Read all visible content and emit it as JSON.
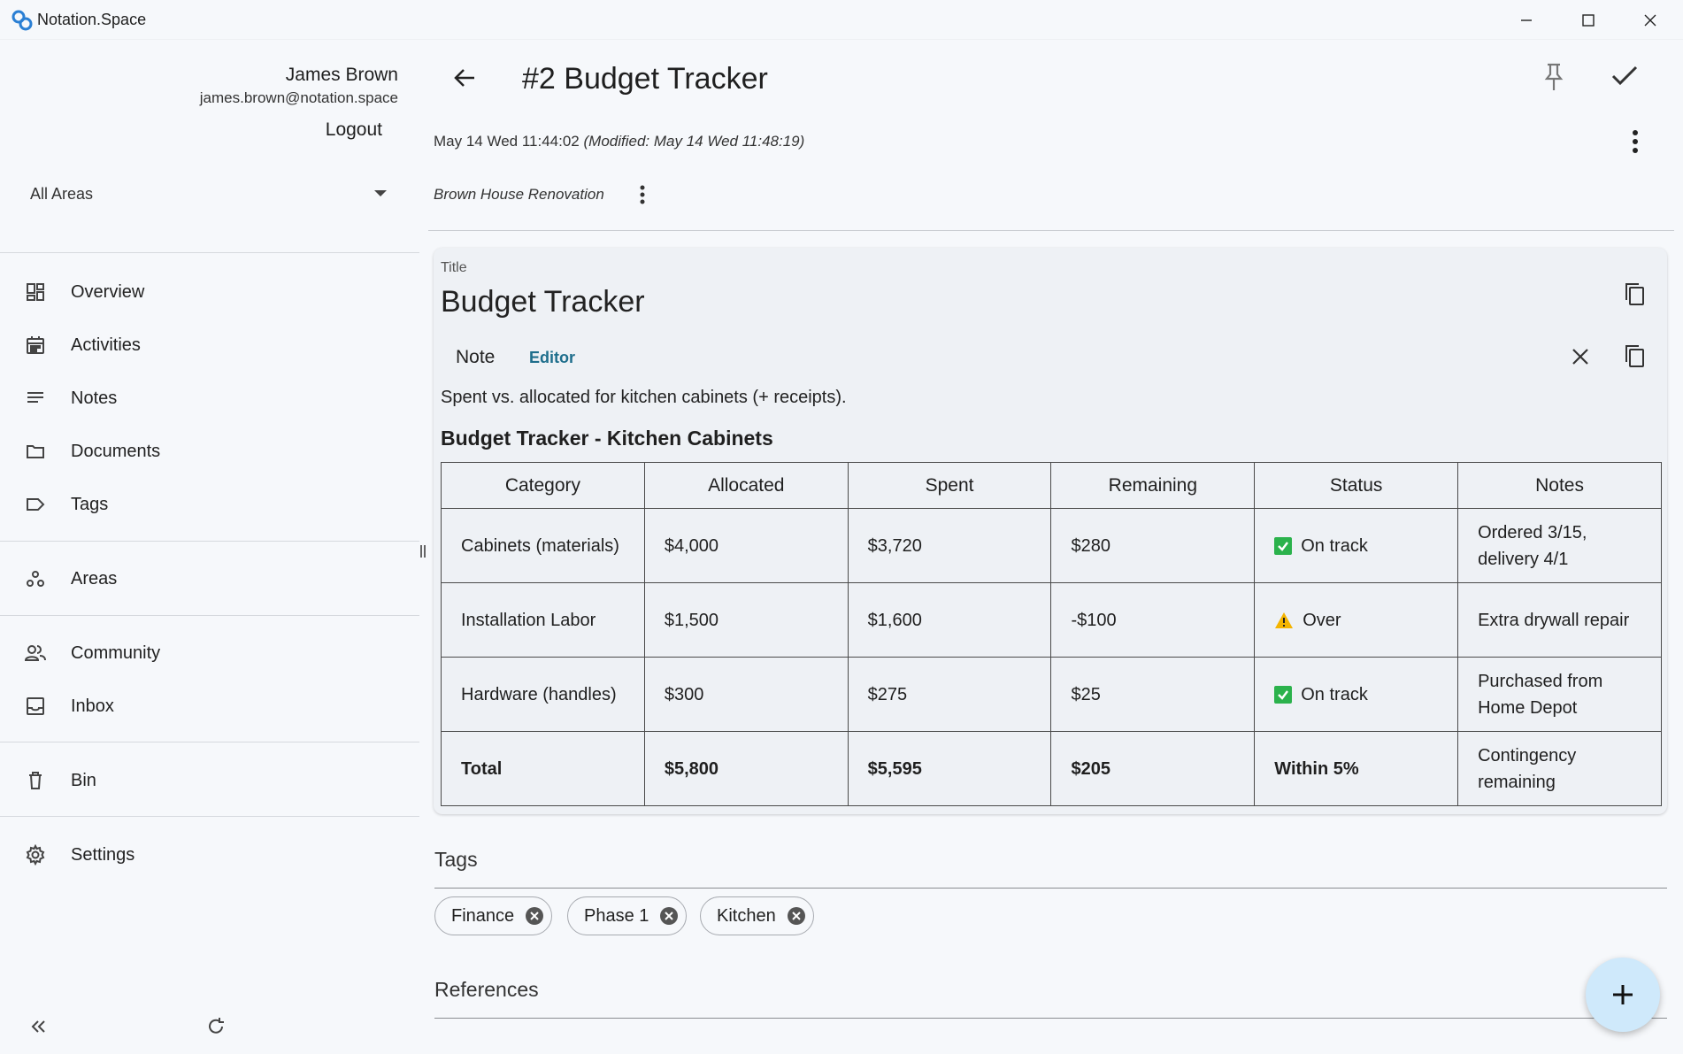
{
  "window": {
    "title": "Notation.Space"
  },
  "user": {
    "name": "James Brown",
    "email": "james.brown@notation.space",
    "logout_label": "Logout"
  },
  "area_selector": {
    "value": "All Areas"
  },
  "nav": [
    {
      "label": "Overview",
      "icon": "dashboard-icon"
    },
    {
      "label": "Activities",
      "icon": "calendar-icon"
    },
    {
      "label": "Notes",
      "icon": "lines-icon"
    },
    {
      "label": "Documents",
      "icon": "folder-icon"
    },
    {
      "label": "Tags",
      "icon": "tag-icon"
    },
    {
      "label": "Areas",
      "icon": "areas-icon"
    },
    {
      "label": "Community",
      "icon": "people-icon"
    },
    {
      "label": "Inbox",
      "icon": "inbox-icon"
    },
    {
      "label": "Bin",
      "icon": "trash-icon"
    },
    {
      "label": "Settings",
      "icon": "gear-icon"
    }
  ],
  "header": {
    "title": "#2 Budget Tracker"
  },
  "meta": {
    "created": "May 14 Wed 11:44:02",
    "modified": "(Modified: May 14 Wed 11:48:19)",
    "area": "Brown House Renovation"
  },
  "card": {
    "title_label": "Title",
    "title": "Budget Tracker",
    "tab_note": "Note",
    "tab_editor": "Editor",
    "description": "Spent vs. allocated for kitchen cabinets (+ receipts).",
    "heading": "Budget Tracker - Kitchen Cabinets",
    "table": {
      "headers": [
        "Category",
        "Allocated",
        "Spent",
        "Remaining",
        "Status",
        "Notes"
      ],
      "rows": [
        {
          "category": "Cabinets (materials)",
          "allocated": "$4,000",
          "spent": "$3,720",
          "remaining": "$280",
          "status_icon": "check-icon",
          "status": "On track",
          "notes": "Ordered 3/15, delivery 4/1"
        },
        {
          "category": "Installation Labor",
          "allocated": "$1,500",
          "spent": "$1,600",
          "remaining": "-$100",
          "status_icon": "warning-icon",
          "status": "Over",
          "notes": "Extra drywall repair"
        },
        {
          "category": "Hardware (handles)",
          "allocated": "$300",
          "spent": "$275",
          "remaining": "$25",
          "status_icon": "check-icon",
          "status": "On track",
          "notes": "Purchased from Home Depot"
        },
        {
          "category": "Total",
          "allocated": "$5,800",
          "spent": "$5,595",
          "remaining": "$205",
          "status_icon": "",
          "status": "Within 5%",
          "notes": "Contingency remaining"
        }
      ]
    }
  },
  "tags": {
    "label": "Tags",
    "items": [
      "Finance",
      "Phase 1",
      "Kitchen"
    ]
  },
  "references": {
    "label": "References"
  },
  "colors": {
    "accent": "#1e6e8c",
    "check": "#2bb24c",
    "warning": "#f4b400",
    "fab": "#cfe9fb"
  }
}
